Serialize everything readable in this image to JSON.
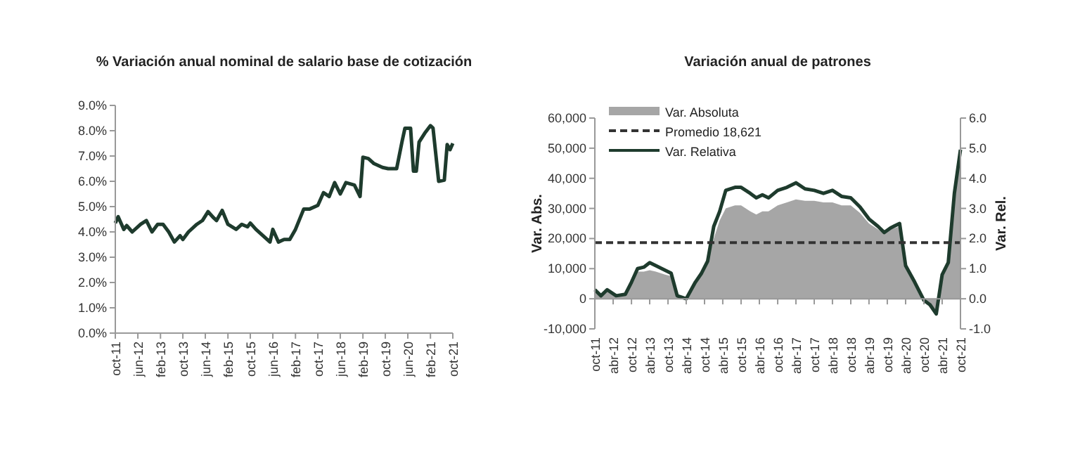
{
  "chart_data": [
    {
      "type": "line",
      "title": "% Variación anual nominal de salario base de cotización",
      "grid": false,
      "legend": false,
      "xlim": [
        "2011-10",
        "2021-10"
      ],
      "xticks": [
        {
          "value": "2011-10",
          "label": "oct-11"
        },
        {
          "value": "2012-06",
          "label": "jun-12"
        },
        {
          "value": "2013-02",
          "label": "feb-13"
        },
        {
          "value": "2013-10",
          "label": "oct-13"
        },
        {
          "value": "2014-06",
          "label": "jun-14"
        },
        {
          "value": "2015-02",
          "label": "feb-15"
        },
        {
          "value": "2015-10",
          "label": "oct-15"
        },
        {
          "value": "2016-06",
          "label": "jun-16"
        },
        {
          "value": "2017-02",
          "label": "feb-17"
        },
        {
          "value": "2017-10",
          "label": "oct-17"
        },
        {
          "value": "2018-06",
          "label": "jun-18"
        },
        {
          "value": "2019-02",
          "label": "feb-19"
        },
        {
          "value": "2019-10",
          "label": "oct-19"
        },
        {
          "value": "2020-06",
          "label": "jun-20"
        },
        {
          "value": "2021-02",
          "label": "feb-21"
        },
        {
          "value": "2021-10",
          "label": "oct-21"
        }
      ],
      "ylim": [
        0,
        9
      ],
      "yticks": [
        {
          "value": 0,
          "label": "0.0%"
        },
        {
          "value": 1,
          "label": "1.0%"
        },
        {
          "value": 2,
          "label": "2.0%"
        },
        {
          "value": 3,
          "label": "3.0%"
        },
        {
          "value": 4,
          "label": "4.0%"
        },
        {
          "value": 5,
          "label": "5.0%"
        },
        {
          "value": 6,
          "label": "6.0%"
        },
        {
          "value": 7,
          "label": "7.0%"
        },
        {
          "value": 8,
          "label": "8.0%"
        },
        {
          "value": 9,
          "label": "9.0%"
        }
      ],
      "series": [
        {
          "color": "#1e3b2d",
          "x": [
            "2011-10",
            "2011-11",
            "2012-01",
            "2012-02",
            "2012-04",
            "2012-07",
            "2012-09",
            "2012-11",
            "2013-01",
            "2013-03",
            "2013-05",
            "2013-07",
            "2013-09",
            "2013-10",
            "2013-12",
            "2014-03",
            "2014-05",
            "2014-07",
            "2014-09",
            "2014-10",
            "2014-12",
            "2015-02",
            "2015-05",
            "2015-07",
            "2015-09",
            "2015-10",
            "2015-12",
            "2016-03",
            "2016-05",
            "2016-06",
            "2016-08",
            "2016-10",
            "2016-12",
            "2017-02",
            "2017-05",
            "2017-07",
            "2017-10",
            "2017-12",
            "2018-02",
            "2018-04",
            "2018-06",
            "2018-08",
            "2018-11",
            "2019-01",
            "2019-02",
            "2019-04",
            "2019-06",
            "2019-09",
            "2019-11",
            "2020-02",
            "2020-04",
            "2020-05",
            "2020-07",
            "2020-08",
            "2020-09",
            "2020-10",
            "2020-12",
            "2021-02",
            "2021-03",
            "2021-05",
            "2021-07",
            "2021-08",
            "2021-09",
            "2021-10"
          ],
          "values": [
            4.35,
            4.6,
            4.1,
            4.25,
            4.0,
            4.3,
            4.45,
            4.0,
            4.3,
            4.3,
            4.0,
            3.6,
            3.85,
            3.7,
            4.0,
            4.3,
            4.45,
            4.8,
            4.55,
            4.45,
            4.85,
            4.3,
            4.1,
            4.3,
            4.2,
            4.35,
            4.1,
            3.8,
            3.6,
            4.1,
            3.6,
            3.7,
            3.7,
            4.1,
            4.9,
            4.9,
            5.05,
            5.55,
            5.4,
            5.95,
            5.5,
            5.95,
            5.85,
            5.4,
            6.95,
            6.9,
            6.7,
            6.55,
            6.5,
            6.5,
            7.6,
            8.1,
            8.1,
            6.4,
            6.4,
            7.55,
            7.9,
            8.2,
            8.1,
            6.0,
            6.05,
            7.45,
            7.25,
            7.5
          ]
        }
      ]
    },
    {
      "type": "area",
      "title": "Variación anual de patrones",
      "ylabel": "Var. Abs.",
      "y2label": "Var. Rel.",
      "legend": "top left",
      "xlim": [
        "2011-10",
        "2021-10"
      ],
      "xticks": [
        {
          "value": "2011-10",
          "label": "oct-11"
        },
        {
          "value": "2012-04",
          "label": "abr-12"
        },
        {
          "value": "2012-10",
          "label": "oct-12"
        },
        {
          "value": "2013-04",
          "label": "abr-13"
        },
        {
          "value": "2013-10",
          "label": "oct-13"
        },
        {
          "value": "2014-04",
          "label": "abr-14"
        },
        {
          "value": "2014-10",
          "label": "oct-14"
        },
        {
          "value": "2015-04",
          "label": "abr-15"
        },
        {
          "value": "2015-10",
          "label": "oct-15"
        },
        {
          "value": "2016-04",
          "label": "abr-16"
        },
        {
          "value": "2016-10",
          "label": "oct-16"
        },
        {
          "value": "2017-04",
          "label": "abr-17"
        },
        {
          "value": "2017-10",
          "label": "oct-17"
        },
        {
          "value": "2018-04",
          "label": "abr-18"
        },
        {
          "value": "2018-10",
          "label": "oct-18"
        },
        {
          "value": "2019-04",
          "label": "abr-19"
        },
        {
          "value": "2019-10",
          "label": "oct-19"
        },
        {
          "value": "2020-04",
          "label": "abr-20"
        },
        {
          "value": "2020-10",
          "label": "oct-20"
        },
        {
          "value": "2021-04",
          "label": "abr-21"
        },
        {
          "value": "2021-10",
          "label": "oct-21"
        }
      ],
      "ylim": [
        -10000,
        60000
      ],
      "yticks": [
        {
          "value": -10000,
          "label": "-10,000"
        },
        {
          "value": 0,
          "label": "0"
        },
        {
          "value": 10000,
          "label": "10,000"
        },
        {
          "value": 20000,
          "label": "20,000"
        },
        {
          "value": 30000,
          "label": "30,000"
        },
        {
          "value": 40000,
          "label": "40,000"
        },
        {
          "value": 50000,
          "label": "50,000"
        },
        {
          "value": 60000,
          "label": "60,000"
        }
      ],
      "y2lim": [
        -1,
        6
      ],
      "y2ticks": [
        {
          "value": -1,
          "label": "-1.0"
        },
        {
          "value": 0,
          "label": "0.0"
        },
        {
          "value": 1,
          "label": "1.0"
        },
        {
          "value": 2,
          "label": "2.0"
        },
        {
          "value": 3,
          "label": "3.0"
        },
        {
          "value": 4,
          "label": "4.0"
        },
        {
          "value": 5,
          "label": "5.0"
        },
        {
          "value": 6,
          "label": "6.0"
        }
      ],
      "ref_lines": [
        {
          "axis": "y",
          "value": 18621,
          "label": "Promedio 18,621",
          "color": "#333333",
          "line_style": "dashed"
        }
      ],
      "series": [
        {
          "name": "Var. Absoluta",
          "color": "#a6a6a6",
          "x": [
            "2011-10",
            "2011-12",
            "2012-02",
            "2012-05",
            "2012-08",
            "2012-10",
            "2012-12",
            "2013-02",
            "2013-04",
            "2013-06",
            "2013-09",
            "2013-11",
            "2014-01",
            "2014-04",
            "2014-07",
            "2014-09",
            "2014-11",
            "2015-01",
            "2015-03",
            "2015-05",
            "2015-08",
            "2015-10",
            "2016-01",
            "2016-03",
            "2016-05",
            "2016-07",
            "2016-10",
            "2017-01",
            "2017-04",
            "2017-07",
            "2017-10",
            "2018-01",
            "2018-04",
            "2018-07",
            "2018-10",
            "2019-01",
            "2019-04",
            "2019-07",
            "2019-09",
            "2019-11",
            "2020-02",
            "2020-04",
            "2020-07",
            "2020-10",
            "2020-12",
            "2021-02",
            "2021-04",
            "2021-06",
            "2021-08",
            "2021-10"
          ],
          "values": [
            3000,
            1000,
            2500,
            1000,
            1500,
            5000,
            9000,
            9000,
            9500,
            9000,
            8000,
            7500,
            1000,
            0,
            5000,
            8000,
            12000,
            20000,
            26000,
            30000,
            31000,
            31000,
            29000,
            28000,
            29000,
            29000,
            31000,
            32000,
            33000,
            32500,
            32500,
            32000,
            32000,
            31000,
            31000,
            28500,
            25000,
            23000,
            21500,
            23000,
            24000,
            10000,
            5000,
            -500,
            -2000,
            -5000,
            8000,
            12000,
            35000,
            48000
          ]
        },
        {
          "name": "Var. Relativa",
          "type": "line",
          "axis": "y2",
          "color": "#1e3b2d",
          "x": [
            "2011-10",
            "2011-12",
            "2012-02",
            "2012-05",
            "2012-08",
            "2012-10",
            "2012-12",
            "2013-02",
            "2013-04",
            "2013-06",
            "2013-09",
            "2013-11",
            "2014-01",
            "2014-04",
            "2014-07",
            "2014-09",
            "2014-11",
            "2015-01",
            "2015-03",
            "2015-05",
            "2015-08",
            "2015-10",
            "2016-01",
            "2016-03",
            "2016-05",
            "2016-07",
            "2016-10",
            "2017-01",
            "2017-04",
            "2017-07",
            "2017-10",
            "2018-01",
            "2018-04",
            "2018-07",
            "2018-10",
            "2019-01",
            "2019-04",
            "2019-07",
            "2019-09",
            "2019-11",
            "2020-02",
            "2020-04",
            "2020-07",
            "2020-10",
            "2020-12",
            "2021-02",
            "2021-04",
            "2021-06",
            "2021-08",
            "2021-10"
          ],
          "values": [
            0.3,
            0.1,
            0.3,
            0.1,
            0.15,
            0.55,
            1.0,
            1.05,
            1.2,
            1.1,
            0.95,
            0.85,
            0.1,
            0.0,
            0.55,
            0.85,
            1.25,
            2.4,
            2.9,
            3.6,
            3.7,
            3.7,
            3.5,
            3.35,
            3.45,
            3.35,
            3.6,
            3.7,
            3.85,
            3.65,
            3.6,
            3.5,
            3.6,
            3.4,
            3.35,
            3.05,
            2.65,
            2.4,
            2.2,
            2.35,
            2.5,
            1.1,
            0.55,
            -0.05,
            -0.2,
            -0.5,
            0.8,
            1.2,
            3.5,
            4.95
          ]
        }
      ]
    }
  ]
}
